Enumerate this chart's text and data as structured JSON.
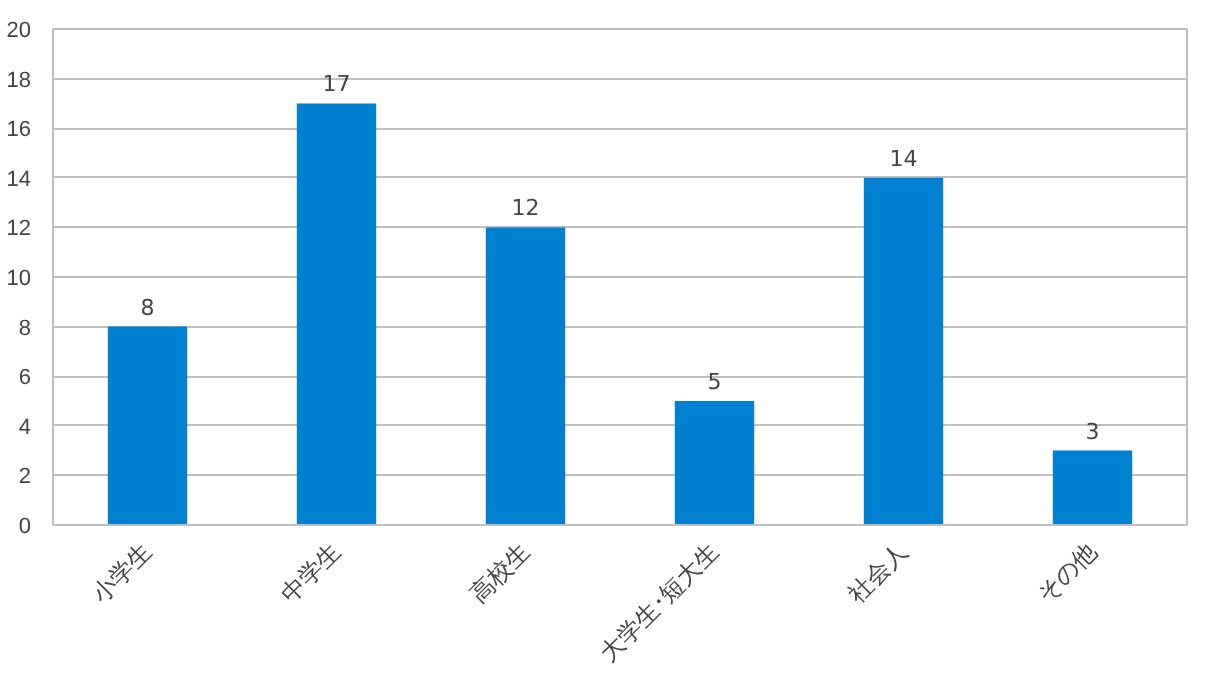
{
  "chart_data": {
    "type": "bar",
    "categories": [
      "小学生",
      "中学生",
      "高校生",
      "大学生･短大生",
      "社会人",
      "その他"
    ],
    "values": [
      8,
      17,
      12,
      5,
      14,
      3
    ],
    "color": "#0080d0",
    "ylim": [
      0,
      20
    ],
    "yticks": [
      0,
      2,
      4,
      6,
      8,
      10,
      12,
      14,
      16,
      18,
      20
    ],
    "grid": "y",
    "data_labels": true
  }
}
